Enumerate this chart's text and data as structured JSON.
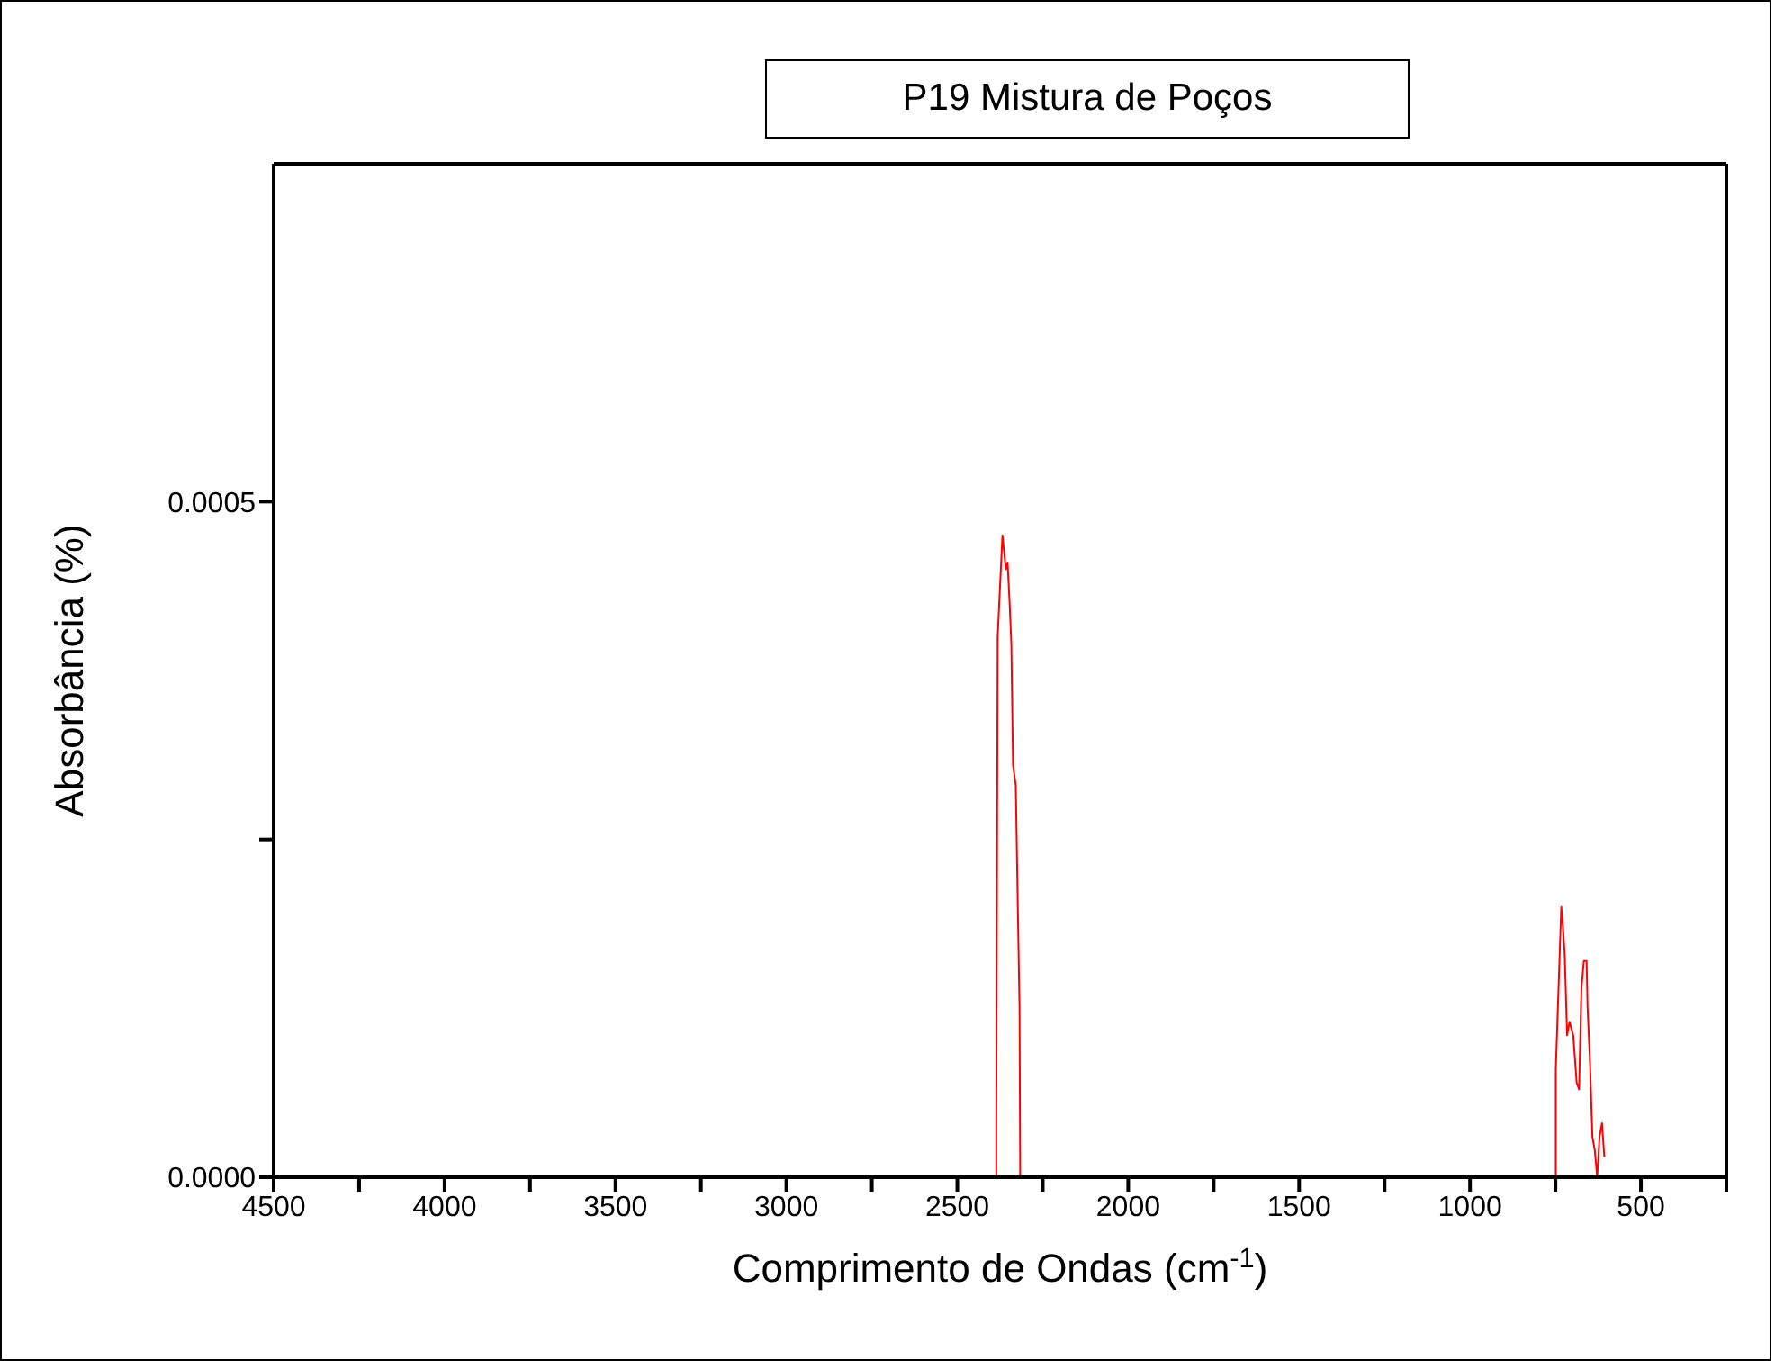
{
  "chart_data": {
    "type": "line",
    "title": "P19 Mistura de Poços",
    "xlabel": "Comprimento de Ondas (cm$^{-1}$)",
    "ylabel": "Absorbância (%)",
    "xlim": [
      4500,
      250
    ],
    "xticks": [
      4500,
      {
        "value": 4250,
        "label": null
      },
      4000,
      {
        "value": 3750,
        "label": null
      },
      3500,
      {
        "value": 3250,
        "label": null
      },
      3000,
      {
        "value": 2750,
        "label": null
      },
      2500,
      {
        "value": 2250,
        "label": null
      },
      2000,
      {
        "value": 1750,
        "label": null
      },
      1500,
      {
        "value": 1250,
        "label": null
      },
      1000,
      {
        "value": 750,
        "label": null
      },
      500,
      {
        "value": 250,
        "label": null
      }
    ],
    "ylim": [
      0,
      0.00075
    ],
    "yticks": [
      {
        "value": 0,
        "label": "0.0000"
      },
      {
        "value": 0.00025,
        "label": null
      },
      {
        "value": 0.0005,
        "label": "0.0005"
      }
    ],
    "legend": false,
    "marker": "none",
    "line_style": "solid",
    "series": [
      {
        "color": "#ff0000",
        "x": [
          2386,
          2386,
          2382,
          2368,
          2358,
          2353,
          2347,
          2342,
          2337,
          2329,
          2318,
          2316,
          749,
          749,
          733,
          728,
          723,
          716,
          709,
          698,
          688,
          681,
          674,
          667,
          659,
          656,
          649,
          642,
          635,
          628,
          621,
          614,
          607
        ],
        "values": [
          0,
          3e-05,
          0.0004,
          0.000475,
          0.00045,
          0.000455,
          0.000425,
          0.000395,
          0.000305,
          0.00029,
          0.000125,
          0,
          0,
          8e-05,
          0.0002,
          0.000185,
          0.000165,
          0.000105,
          0.000115,
          0.000105,
          7e-05,
          6.5e-05,
          0.00014,
          0.00016,
          0.00016,
          0.000125,
          8.5e-05,
          3e-05,
          2e-05,
          0,
          3e-05,
          4e-05,
          1.5e-05
        ]
      }
    ]
  }
}
